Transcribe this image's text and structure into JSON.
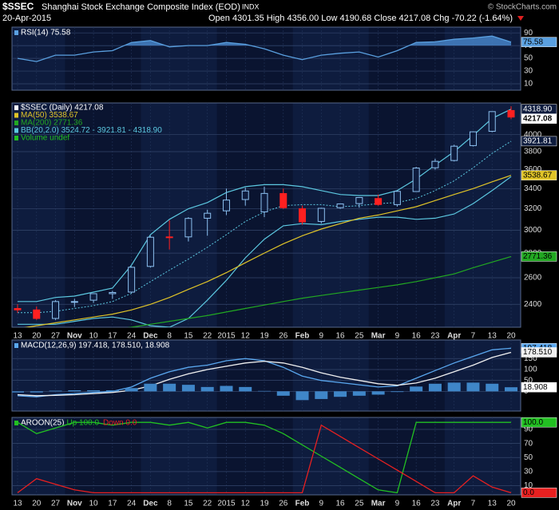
{
  "header": {
    "symbol": "$SSEC",
    "name": "Shanghai Stock Exchange Composite Index (EOD)",
    "exchange": "INDX",
    "date": "20-Apr-2015",
    "quote": "Open 4301.35  High 4356.00  Low 4190.68  Close 4217.08  Chg -70.22 (-1.64%)",
    "credit": "© StockCharts.com"
  },
  "chart_data": [
    {
      "type": "line",
      "title": "RSI(14) 75.58",
      "ylim": [
        0,
        99
      ],
      "yticks": [
        10,
        30,
        50,
        70,
        90
      ],
      "grid": true,
      "shade_above": 70,
      "series": [
        {
          "color": "#5aa0e0",
          "last_label": "75.58",
          "values": [
            50,
            45,
            55,
            55,
            60,
            62,
            75,
            78,
            68,
            70,
            70,
            75,
            72,
            65,
            55,
            48,
            55,
            58,
            60,
            52,
            62,
            75,
            76,
            80,
            82,
            85,
            75.58
          ]
        }
      ]
    },
    {
      "type": "candlestick",
      "log_scale": true,
      "ylim": [
        2240,
        4400
      ],
      "yticks": [
        2400,
        2600,
        2800,
        3000,
        3200,
        3400,
        3600,
        3800,
        4000
      ],
      "grid": true,
      "categories": [
        "13",
        "20",
        "27",
        "Nov",
        "10",
        "17",
        "24",
        "Dec",
        "8",
        "15",
        "22",
        "2015",
        "12",
        "19",
        "26",
        "Feb",
        "9",
        "16",
        "25",
        "Mar",
        "9",
        "16",
        "23",
        "Apr",
        "7",
        "13",
        "20"
      ],
      "series": [
        {
          "name": "$SSEC (Daily) 4217.08",
          "up_color": "#8cc0f0",
          "down_color": "#ff2020",
          "last_label": "4217.08",
          "open": [
            2370,
            2360,
            2300,
            2420,
            2430,
            2478,
            2490,
            2690,
            2940,
            2940,
            3110,
            3180,
            3290,
            3170,
            3350,
            3200,
            3080,
            3210,
            3250,
            3300,
            3240,
            3370,
            3620,
            3700,
            3870,
            4040,
            4301.35
          ],
          "high": [
            2400,
            2385,
            2430,
            2440,
            2480,
            2500,
            2690,
            2950,
            3090,
            3120,
            3190,
            3400,
            3410,
            3420,
            3400,
            3230,
            3210,
            3250,
            3310,
            3340,
            3380,
            3630,
            3720,
            3880,
            4040,
            4290,
            4356
          ],
          "low": [
            2340,
            2290,
            2290,
            2380,
            2410,
            2440,
            2480,
            2680,
            2830,
            2900,
            2950,
            3140,
            3230,
            3120,
            3200,
            3050,
            3060,
            3200,
            3210,
            3230,
            3220,
            3370,
            3600,
            3690,
            3860,
            4030,
            4190.68
          ],
          "close": [
            2360,
            2300,
            2420,
            2420,
            2478,
            2487,
            2683,
            2937,
            2938,
            3108,
            3157,
            3285,
            3376,
            3351,
            3210,
            3076,
            3204,
            3247,
            3310,
            3241,
            3372,
            3617,
            3691,
            3863,
            4034,
            4287,
            4217.08
          ]
        }
      ],
      "overlays": [
        {
          "name": "MA(50) 3538.67",
          "color": "#e0c428",
          "last_label": "3538.67",
          "values": [
            2230,
            2250,
            2270,
            2290,
            2310,
            2330,
            2360,
            2400,
            2450,
            2510,
            2570,
            2640,
            2720,
            2800,
            2880,
            2950,
            3010,
            3060,
            3110,
            3140,
            3180,
            3220,
            3280,
            3340,
            3400,
            3470,
            3538.67
          ]
        },
        {
          "name": "MA(200) 2771.36",
          "color": "#22a822",
          "last_label": "2771.36",
          "values": [
            2150,
            2165,
            2180,
            2195,
            2210,
            2225,
            2240,
            2260,
            2280,
            2300,
            2320,
            2345,
            2370,
            2395,
            2420,
            2445,
            2465,
            2485,
            2505,
            2525,
            2545,
            2570,
            2600,
            2630,
            2680,
            2725,
            2771.36
          ]
        }
      ],
      "bands": {
        "name": "BB(20,2.0) 3524.72 - 3921.81 - 4318.90",
        "color": "#5cc8e0",
        "upper_label": "4318.90",
        "middle_label": "3921.81",
        "upper": [
          2420,
          2420,
          2450,
          2460,
          2490,
          2520,
          2700,
          2960,
          3100,
          3200,
          3260,
          3360,
          3420,
          3440,
          3440,
          3420,
          3380,
          3340,
          3330,
          3330,
          3380,
          3500,
          3650,
          3800,
          3990,
          4200,
          4318.9
        ],
        "middle": [
          2340,
          2340,
          2350,
          2370,
          2390,
          2420,
          2480,
          2570,
          2660,
          2750,
          2850,
          2960,
          3080,
          3170,
          3230,
          3240,
          3240,
          3220,
          3230,
          3250,
          3260,
          3300,
          3380,
          3480,
          3620,
          3780,
          3921.81
        ],
        "lower": [
          2260,
          2260,
          2260,
          2280,
          2300,
          2310,
          2290,
          2250,
          2240,
          2300,
          2430,
          2580,
          2760,
          2920,
          3040,
          3060,
          3050,
          3080,
          3100,
          3120,
          3120,
          3100,
          3110,
          3150,
          3250,
          3380,
          3524.72
        ]
      },
      "volume_label": "Volume undef"
    },
    {
      "type": "line",
      "title": "MACD(12,26,9) 197.418, 178.510, 18.908",
      "ylim": [
        -90,
        235
      ],
      "yticks": [
        0,
        50,
        100,
        150
      ],
      "grid": true,
      "series": [
        {
          "kind": "line",
          "color": "#5aa8f0",
          "last_label": "197.418",
          "values": [
            -20,
            -25,
            -15,
            -10,
            -5,
            0,
            20,
            60,
            90,
            110,
            120,
            140,
            150,
            140,
            110,
            70,
            50,
            40,
            30,
            20,
            25,
            60,
            95,
            130,
            160,
            190,
            197.418
          ]
        },
        {
          "kind": "line",
          "color": "#f0f0f0",
          "last_label": "178.510",
          "values": [
            -15,
            -20,
            -18,
            -15,
            -10,
            -5,
            5,
            25,
            55,
            80,
            100,
            115,
            130,
            138,
            130,
            110,
            85,
            65,
            50,
            35,
            28,
            38,
            60,
            90,
            120,
            155,
            178.51
          ]
        },
        {
          "kind": "bar",
          "color": "#3f86c8",
          "last_label": "18.908",
          "values": [
            -5,
            -5,
            3,
            5,
            5,
            5,
            15,
            35,
            35,
            30,
            20,
            25,
            20,
            2,
            -20,
            -40,
            -35,
            -25,
            -20,
            -15,
            -3,
            22,
            35,
            40,
            40,
            35,
            18.908
          ]
        }
      ]
    },
    {
      "type": "line",
      "title": "AROON(25)",
      "ylim": [
        -3,
        107
      ],
      "yticks": [
        10,
        30,
        50,
        70,
        90
      ],
      "grid": true,
      "categories": [
        "13",
        "20",
        "27",
        "Nov",
        "10",
        "17",
        "24",
        "Dec",
        "8",
        "15",
        "22",
        "2015",
        "12",
        "19",
        "26",
        "Feb",
        "9",
        "16",
        "25",
        "Mar",
        "9",
        "16",
        "23",
        "Apr",
        "7",
        "13",
        "20"
      ],
      "series": [
        {
          "name": "Up 100.0",
          "kind": "line",
          "color": "#22c022",
          "last_label": "100.0",
          "values": [
            100,
            84,
            92,
            100,
            100,
            96,
            100,
            100,
            96,
            100,
            92,
            100,
            100,
            96,
            84,
            68,
            52,
            36,
            20,
            4,
            0,
            100,
            100,
            100,
            100,
            100,
            100
          ]
        },
        {
          "name": "Down 0.0",
          "kind": "line",
          "color": "#e82020",
          "last_label": "0.0",
          "values": [
            0,
            20,
            12,
            4,
            0,
            0,
            0,
            0,
            0,
            0,
            0,
            0,
            0,
            0,
            0,
            0,
            96,
            80,
            64,
            48,
            32,
            16,
            0,
            0,
            24,
            8,
            0
          ]
        }
      ]
    }
  ]
}
